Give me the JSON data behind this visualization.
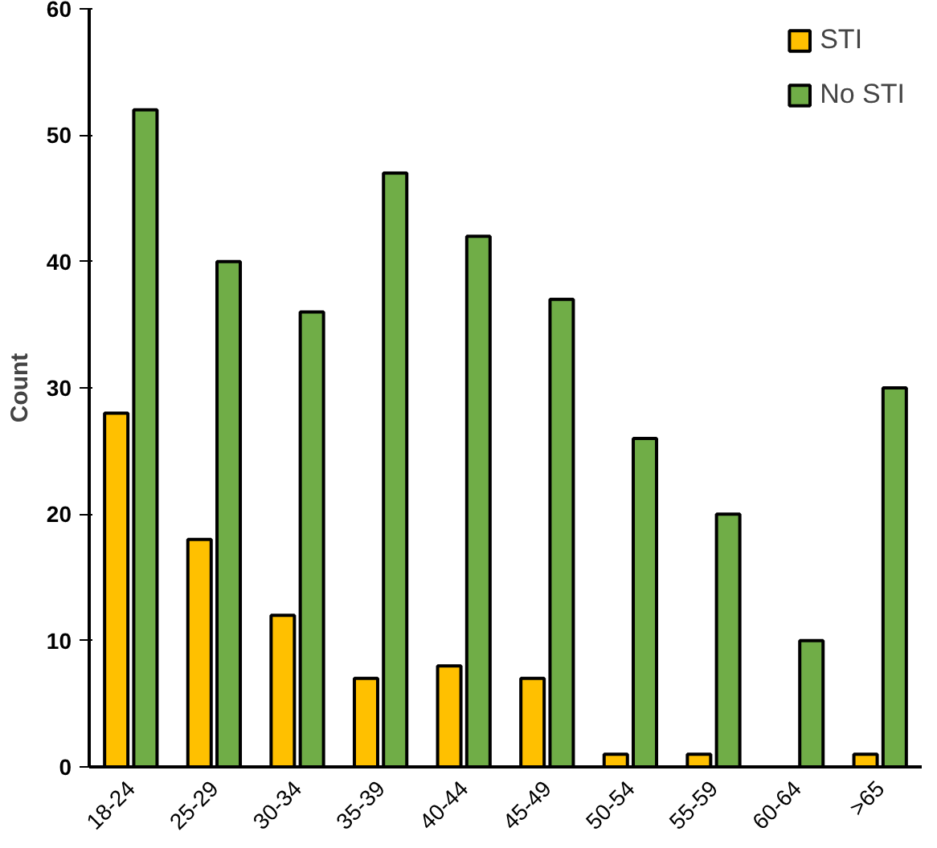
{
  "chart_data": {
    "type": "bar",
    "ylabel": "Count",
    "categories": [
      "18-24",
      "25-29",
      "30-34",
      "35-39",
      "40-44",
      "45-49",
      "50-54",
      "55-59",
      "60-64",
      ">65"
    ],
    "series": [
      {
        "name": "STI",
        "color": "#ffc000",
        "values": [
          28,
          18,
          12,
          7,
          8,
          7,
          1,
          1,
          0,
          1
        ]
      },
      {
        "name": "No STI",
        "color": "#70ad47",
        "values": [
          52,
          40,
          36,
          47,
          42,
          37,
          26,
          20,
          10,
          30
        ]
      }
    ],
    "ylim": [
      0,
      60
    ],
    "yticks": [
      0,
      10,
      20,
      30,
      40,
      50,
      60
    ],
    "grid": false,
    "legend": "top right"
  }
}
